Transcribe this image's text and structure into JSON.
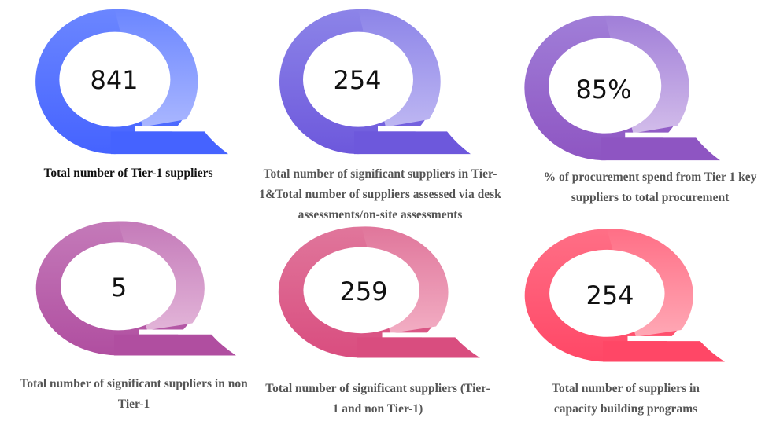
{
  "cards": [
    {
      "value": "841",
      "label": "Total number of Tier-1 suppliers",
      "colors": {
        "top": "#6b86ff",
        "light": "#a9b6ff",
        "bottom": "#4563ff"
      }
    },
    {
      "value": "254",
      "label": "Total number of significant suppliers in Tier-1&Total number of suppliers assessed via desk assessments/on-site assessments",
      "colors": {
        "top": "#8c84e8",
        "light": "#bdb6f2",
        "bottom": "#6d58dc"
      }
    },
    {
      "value": "85%",
      "label": "% of procurement spend from Tier 1 key suppliers to total procurement",
      "colors": {
        "top": "#a07ed8",
        "light": "#d2bcea",
        "bottom": "#8e55c2"
      }
    },
    {
      "value": "5",
      "label": "Total number of significant suppliers in non Tier-1",
      "colors": {
        "top": "#c47ab9",
        "light": "#e2b4d8",
        "bottom": "#b04ea0"
      }
    },
    {
      "value": "259",
      "label": "Total number of significant suppliers (Tier-1 and non Tier-1)",
      "colors": {
        "top": "#e0769b",
        "light": "#f2adc3",
        "bottom": "#d94d7f"
      }
    },
    {
      "value": "254",
      "label": "Total number of suppliers in capacity building programs",
      "colors": {
        "top": "#ff6f86",
        "light": "#ffa8b5",
        "bottom": "#ff4766"
      }
    }
  ]
}
